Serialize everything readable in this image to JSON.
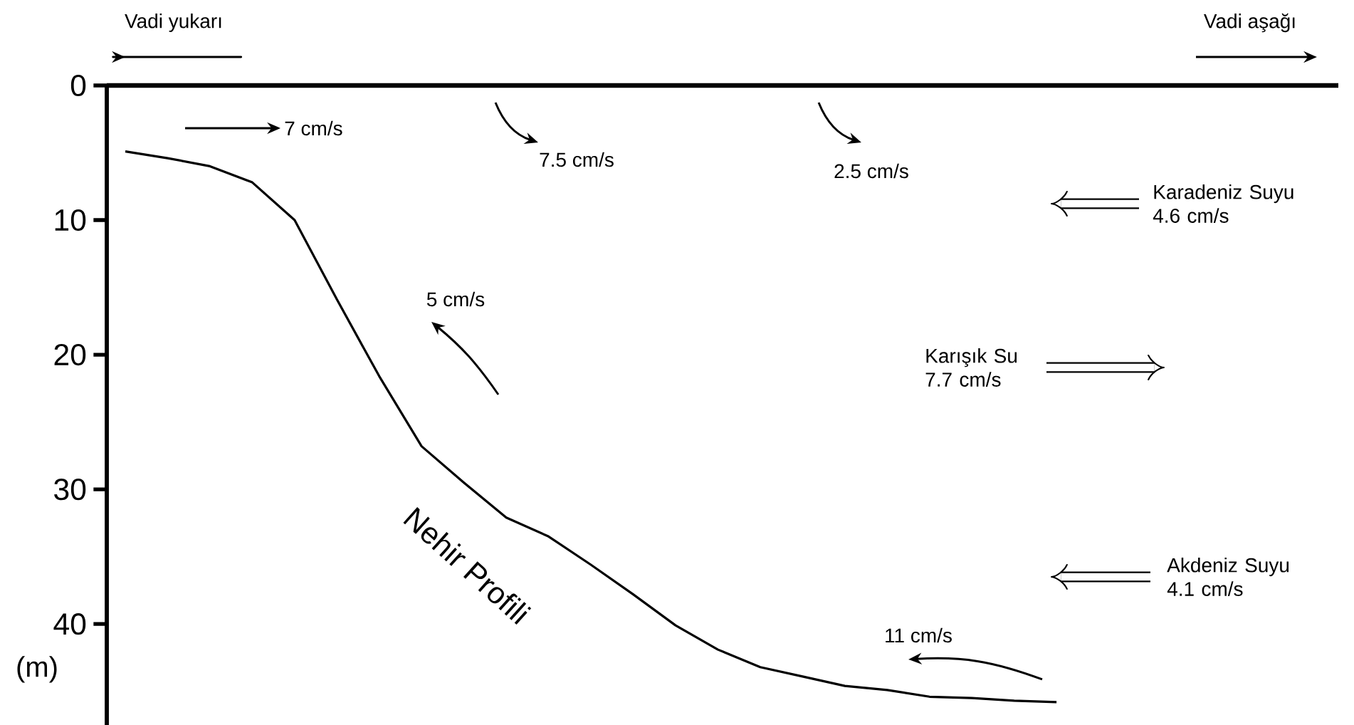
{
  "chart_data": {
    "type": "line",
    "ylabel": "(m)",
    "categories": [
      null,
      null,
      null,
      null,
      null,
      null,
      null,
      null,
      null,
      null,
      null,
      null,
      null,
      null,
      null,
      null,
      null,
      null,
      null,
      null,
      null,
      null,
      null
    ],
    "series": [
      {
        "name": "Nehir Profili",
        "color": "#000000",
        "values": [
          4.9,
          5.4,
          6.0,
          7.2,
          10.0,
          15.9,
          21.6,
          26.8,
          29.5,
          32.1,
          33.5,
          35.6,
          37.8,
          40.1,
          41.9,
          43.2,
          43.9,
          44.6,
          44.9,
          45.4,
          45.5,
          45.7,
          45.8
        ]
      }
    ],
    "ylim": [
      47.5,
      0
    ],
    "yticks": [
      0,
      10,
      20,
      30,
      40
    ],
    "tick_labels": "y",
    "marker": "none",
    "line_style": "solid",
    "annotations": [
      "Vadi yukarı",
      "Vadi aşağı",
      "7 cm/s",
      "7.5 cm/s",
      "2.5 cm/s",
      "Karadeniz Suyu 4.6 cm/s",
      "5 cm/s",
      "Karışık Su 7.7 cm/s",
      "Akdeniz Suyu 4.1 cm/s",
      "11 cm/s"
    ]
  }
}
